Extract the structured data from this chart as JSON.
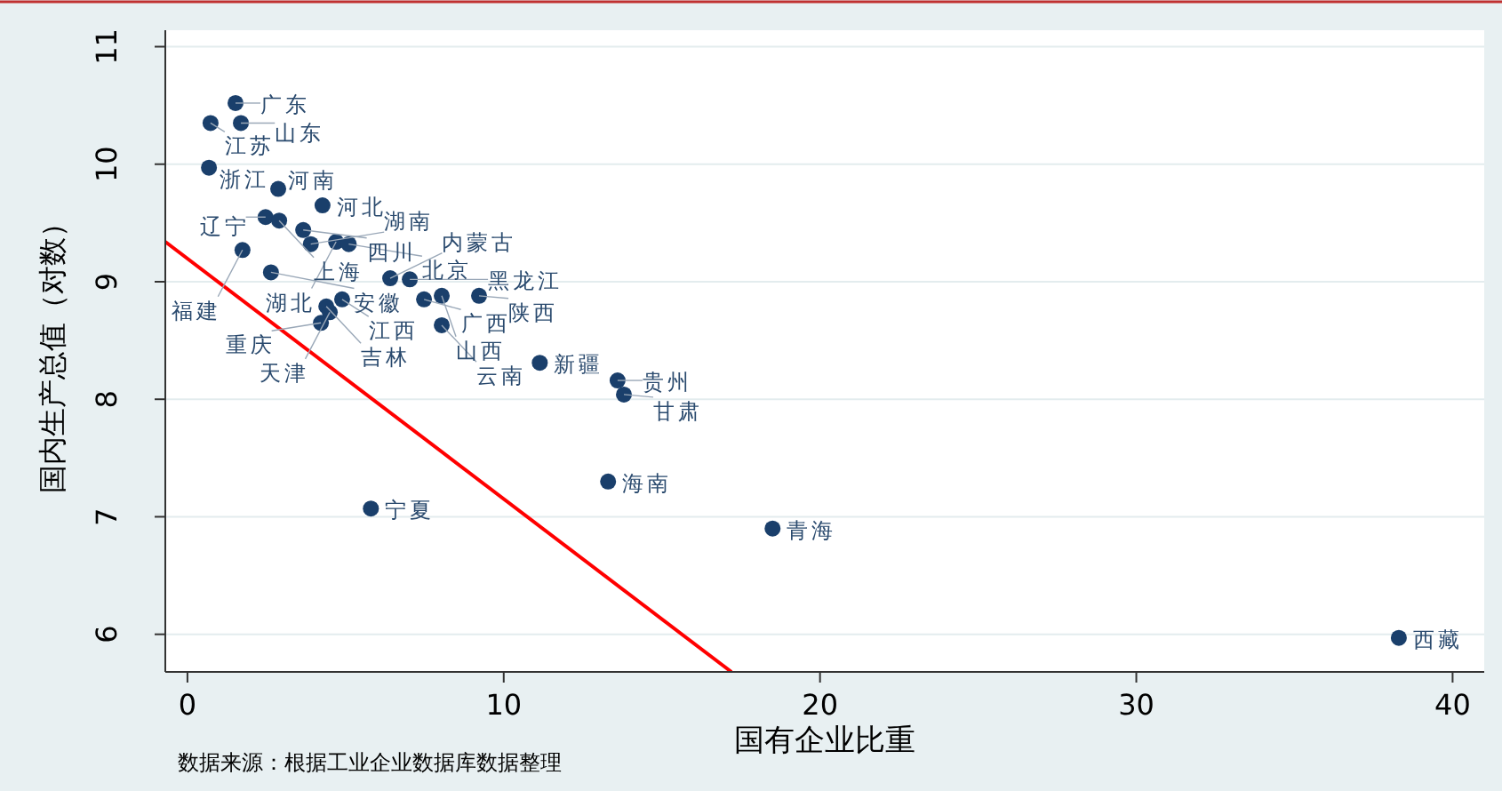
{
  "chart_data": {
    "type": "scatter",
    "xlabel": "国有企业比重",
    "ylabel": "国内生产总值（对数）",
    "xlim": [
      -0.7,
      41
    ],
    "ylim": [
      5.68,
      11.14
    ],
    "xticks": [
      0,
      10,
      20,
      30,
      40
    ],
    "yticks": [
      6,
      7,
      8,
      9,
      10,
      11
    ],
    "grid": "y",
    "marker": "circle",
    "series": [
      {
        "color": "#1a3f6b",
        "x": [
          1.52,
          0.73,
          1.69,
          0.68,
          2.87,
          4.27,
          2.47,
          2.9,
          3.66,
          3.9,
          4.7,
          5.1,
          1.74,
          2.64,
          6.41,
          7.03,
          4.89,
          4.39,
          4.5,
          7.48,
          8.04,
          9.22,
          4.22,
          8.04,
          11.14,
          13.6,
          13.8,
          13.3,
          5.8,
          18.5,
          38.3
        ],
        "values": [
          10.52,
          10.35,
          10.35,
          9.97,
          9.79,
          9.65,
          9.55,
          9.52,
          9.44,
          9.32,
          9.34,
          9.32,
          9.27,
          9.08,
          9.03,
          9.02,
          8.85,
          8.79,
          8.74,
          8.85,
          8.88,
          8.88,
          8.65,
          8.63,
          8.31,
          8.16,
          8.04,
          7.3,
          7.07,
          6.9,
          5.97
        ]
      },
      {
        "type": "line",
        "color": "#ff0000",
        "marker": "none",
        "x": [
          -0.7,
          17.2
        ],
        "values": [
          9.34,
          5.68
        ]
      }
    ],
    "annotations": [
      {
        "text": "广东",
        "x": 1.52,
        "y": 10.52
      },
      {
        "text": "江苏",
        "x": 0.73,
        "y": 10.35
      },
      {
        "text": "山东",
        "x": 1.69,
        "y": 10.35
      },
      {
        "text": "浙江",
        "x": 0.68,
        "y": 9.97
      },
      {
        "text": "河南",
        "x": 2.87,
        "y": 9.79
      },
      {
        "text": "河北",
        "x": 4.27,
        "y": 9.65
      },
      {
        "text": "辽宁",
        "x": 2.47,
        "y": 9.55
      },
      {
        "text": "上海",
        "x": 2.9,
        "y": 9.52
      },
      {
        "text": "四川",
        "x": 3.66,
        "y": 9.44
      },
      {
        "text": "湖南",
        "x": 3.9,
        "y": 9.32
      },
      {
        "text": "湖北",
        "x": 4.7,
        "y": 9.34
      },
      {
        "text": "北京",
        "x": 5.1,
        "y": 9.32
      },
      {
        "text": "福建",
        "x": 1.74,
        "y": 9.27
      },
      {
        "text": "安徽",
        "x": 2.64,
        "y": 9.08
      },
      {
        "text": "内蒙古",
        "x": 6.41,
        "y": 9.03
      },
      {
        "text": "黑龙江",
        "x": 7.03,
        "y": 9.02
      },
      {
        "text": "江西",
        "x": 4.89,
        "y": 8.85
      },
      {
        "text": "吉林",
        "x": 4.39,
        "y": 8.79
      },
      {
        "text": "天津",
        "x": 4.5,
        "y": 8.74
      },
      {
        "text": "广西",
        "x": 7.48,
        "y": 8.85
      },
      {
        "text": "山西",
        "x": 8.04,
        "y": 8.88
      },
      {
        "text": "陕西",
        "x": 9.22,
        "y": 8.88
      },
      {
        "text": "重庆",
        "x": 4.22,
        "y": 8.65
      },
      {
        "text": "云南",
        "x": 8.04,
        "y": 8.63
      },
      {
        "text": "新疆",
        "x": 11.14,
        "y": 8.31
      },
      {
        "text": "贵州",
        "x": 13.6,
        "y": 8.16
      },
      {
        "text": "甘肃",
        "x": 13.8,
        "y": 8.04
      },
      {
        "text": "海南",
        "x": 13.3,
        "y": 7.3
      },
      {
        "text": "宁夏",
        "x": 5.8,
        "y": 7.07
      },
      {
        "text": "青海",
        "x": 18.5,
        "y": 6.9
      },
      {
        "text": "西藏",
        "x": 38.3,
        "y": 5.97
      },
      "数据来源：根据工业企业数据库数据整理"
    ]
  }
}
